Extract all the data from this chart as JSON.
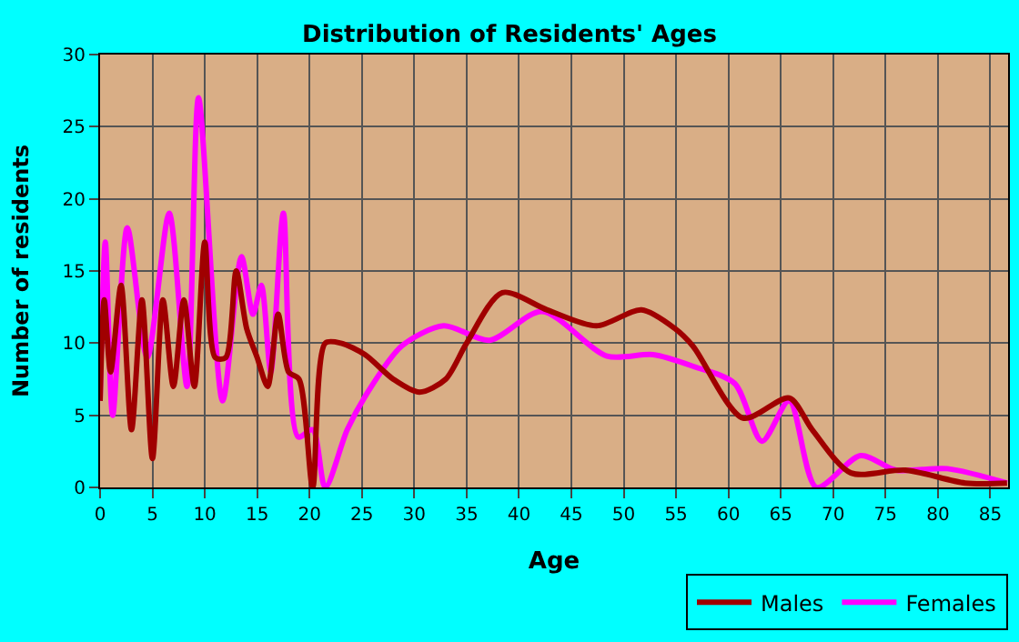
{
  "chart_data": {
    "type": "line",
    "title": "Distribution of Residents' Ages",
    "xlabel": "Age",
    "ylabel": "Number of residents",
    "xlim": [
      0,
      86.7
    ],
    "xticks": [
      0,
      5,
      10,
      15,
      20,
      25,
      30,
      35,
      40,
      45,
      50,
      55,
      60,
      65,
      70,
      75,
      80,
      85
    ],
    "ylim": [
      0,
      30
    ],
    "yticks": [
      0,
      5,
      10,
      15,
      20,
      25,
      30
    ],
    "grid": true,
    "legend": "bottom right",
    "marker": "none",
    "line_style": "solid",
    "series": [
      {
        "name": "Males",
        "color": "#a00000",
        "x": [
          0,
          0.4,
          1,
          2,
          3,
          4,
          5,
          6,
          7,
          8,
          9,
          10,
          11,
          12,
          13,
          14,
          15,
          16,
          17,
          18,
          19,
          20.3,
          21.5,
          23,
          25.3,
          28,
          30.5,
          33,
          35,
          38.4,
          42.7,
          47.4,
          51.7,
          54.9,
          56.6,
          61.4,
          65.8,
          68,
          71.7,
          76.9,
          82.6,
          86.6
        ],
        "values": [
          6,
          13,
          8,
          14,
          4,
          13,
          2,
          13,
          7,
          13,
          7,
          17,
          9,
          9,
          15,
          11,
          9,
          7,
          12,
          8,
          7.5,
          0,
          10,
          10,
          9.2,
          7.5,
          6.6,
          7.5,
          10,
          13.5,
          12.3,
          11.2,
          12.3,
          11,
          9.8,
          4.8,
          6.2,
          4,
          1,
          1.2,
          0.3,
          0.3
        ]
      },
      {
        "name": "Females",
        "color": "#ff00ff",
        "x": [
          0,
          0.5,
          1.2,
          2.6,
          4.5,
          6.6,
          8.3,
          9.4,
          11.7,
          13.5,
          14.6,
          15.4,
          16.3,
          17.5,
          18.9,
          20.3,
          21.5,
          23.6,
          25.3,
          28.8,
          32.8,
          37.2,
          42.2,
          48.4,
          52.8,
          56.6,
          60.6,
          63.2,
          65.8,
          68.4,
          72.6,
          76,
          80.9,
          86.6
        ],
        "values": [
          6,
          17,
          5,
          18,
          9,
          19,
          7,
          27,
          6,
          16,
          12,
          14,
          8,
          19,
          3.5,
          4,
          0,
          4,
          6.3,
          9.8,
          11.2,
          10.2,
          12.2,
          9.1,
          9.2,
          8.4,
          7.2,
          3.2,
          6,
          0,
          2.2,
          1.2,
          1.3,
          0.3
        ]
      }
    ]
  }
}
